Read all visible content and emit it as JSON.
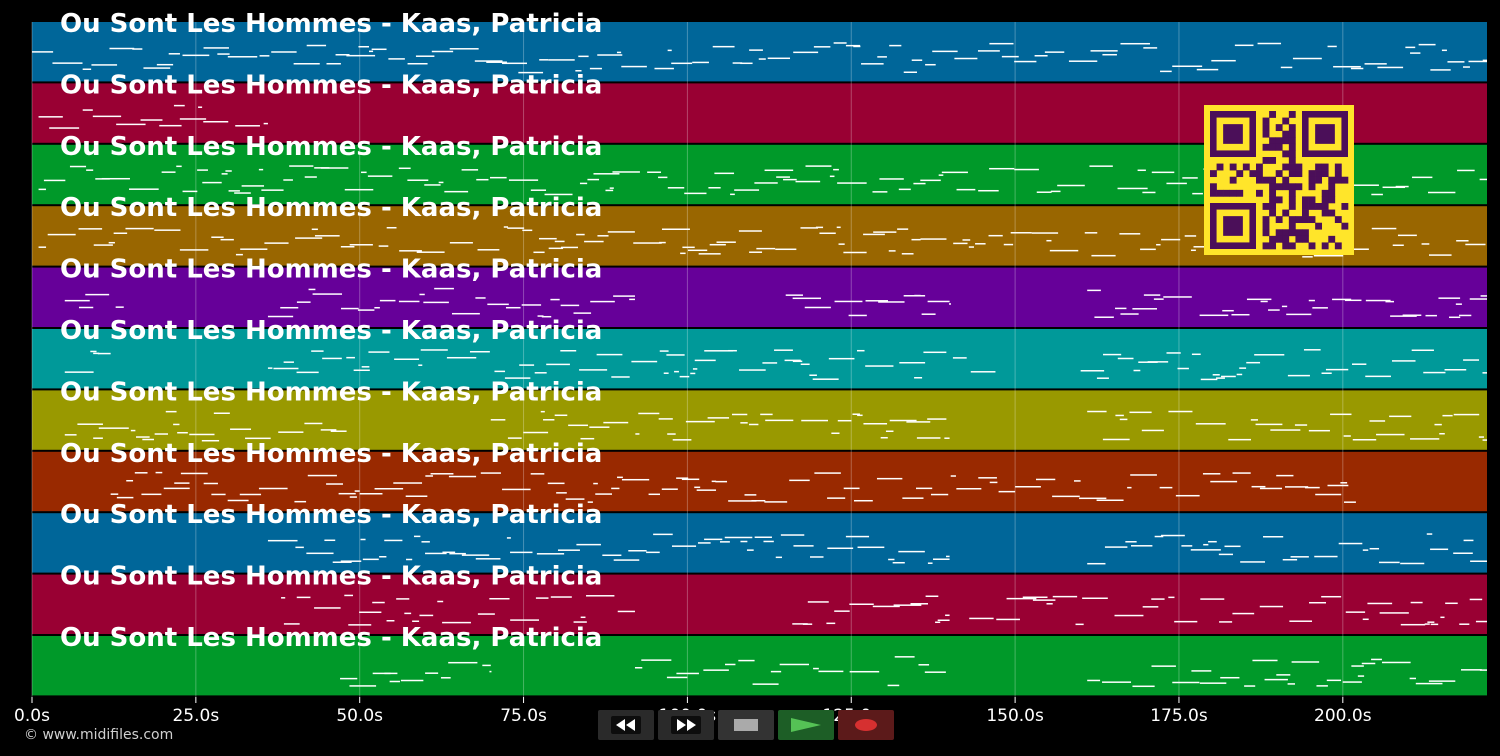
{
  "tracks": [
    {
      "title": "Ou Sont Les Hommes - Kaas, Patricia",
      "color": "#006699"
    },
    {
      "title": "Ou Sont Les Hommes - Kaas, Patricia",
      "color": "#990033"
    },
    {
      "title": "Ou Sont Les Hommes - Kaas, Patricia",
      "color": "#009929"
    },
    {
      "title": "Ou Sont Les Hommes - Kaas, Patricia",
      "color": "#996600"
    },
    {
      "title": "Ou Sont Les Hommes - Kaas, Patricia",
      "color": "#660099"
    },
    {
      "title": "Ou Sont Les Hommes - Kaas, Patricia",
      "color": "#009999"
    },
    {
      "title": "Ou Sont Les Hommes - Kaas, Patricia",
      "color": "#999900"
    },
    {
      "title": "Ou Sont Les Hommes - Kaas, Patricia",
      "color": "#992900"
    },
    {
      "title": "Ou Sont Les Hommes - Kaas, Patricia",
      "color": "#006699"
    },
    {
      "title": "Ou Sont Les Hommes - Kaas, Patricia",
      "color": "#990033"
    },
    {
      "title": "Ou Sont Les Hommes - Kaas, Patricia",
      "color": "#009929"
    }
  ],
  "time_axis": {
    "min_s": 0,
    "max_s": 222,
    "ticks": [
      {
        "value": 0,
        "label": "0.0s"
      },
      {
        "value": 25,
        "label": "25.0s"
      },
      {
        "value": 50,
        "label": "50.0s"
      },
      {
        "value": 75,
        "label": "75.0s"
      },
      {
        "value": 100,
        "label": "100.0s"
      },
      {
        "value": 125,
        "label": "125.0s"
      },
      {
        "value": 150,
        "label": "150.0s"
      },
      {
        "value": 175,
        "label": "175.0s"
      },
      {
        "value": 200,
        "label": "200.0s"
      }
    ]
  },
  "colors": {
    "background": "#000000",
    "note": "#ffffff",
    "qr_background": "#ffe52a",
    "qr_modules": "#4b0f59",
    "play_icon": "#55c255",
    "record_icon": "#d63030",
    "stop_icon": "#aaaaaa"
  },
  "toolbar": {
    "rewind_icon": "rewind-icon",
    "fast_forward_icon": "fast-forward-icon",
    "stop_icon": "stop-icon",
    "play_icon": "play-icon",
    "record_icon": "record-icon"
  },
  "copyright": "© www.midifiles.com"
}
